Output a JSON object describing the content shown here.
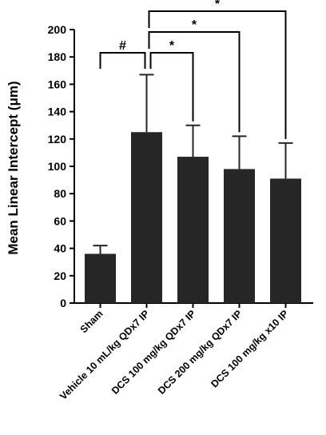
{
  "chart_data": {
    "type": "bar",
    "title": "",
    "xlabel": "",
    "ylabel": "Mean Linear Intercept (μm)",
    "ylim": [
      0,
      200
    ],
    "yticks": [
      0,
      20,
      40,
      60,
      80,
      100,
      120,
      140,
      160,
      180,
      200
    ],
    "categories": [
      "Sham",
      "Vehicle 10 mL/kg QDx7 IP",
      "DCS 100 mg/kg QDx7 IP",
      "DCS 200 mg/kg QDx7 IP",
      "DCS 100 mg/kg x10 IP"
    ],
    "values": [
      36,
      125,
      107,
      98,
      91
    ],
    "error_upper": [
      6,
      42,
      23,
      24,
      26
    ],
    "bar_color": "#262626",
    "grid": false,
    "legend": "none",
    "significance": [
      {
        "from": 0,
        "to": 1,
        "label": "#"
      },
      {
        "from": 1,
        "to": 2,
        "label": "*"
      },
      {
        "from": 1,
        "to": 3,
        "label": "*"
      },
      {
        "from": 1,
        "to": 4,
        "label": "*"
      }
    ]
  }
}
